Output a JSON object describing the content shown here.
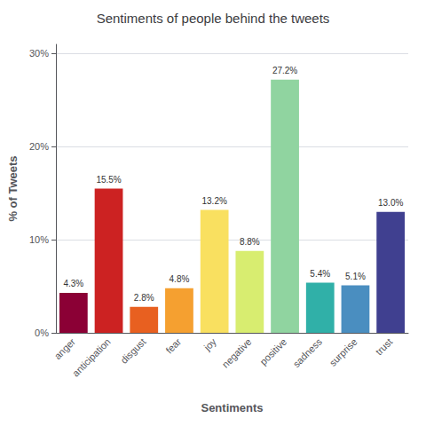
{
  "chart_data": {
    "type": "bar",
    "title": "Sentiments of people behind the tweets",
    "xlabel": "Sentiments",
    "ylabel": "% of Tweets",
    "categories": [
      "anger",
      "anticipation",
      "disgust",
      "fear",
      "joy",
      "negative",
      "positive",
      "sadness",
      "surprise",
      "trust"
    ],
    "values": [
      4.3,
      15.5,
      2.8,
      4.8,
      13.2,
      8.8,
      27.2,
      5.4,
      5.1,
      13.0
    ],
    "value_labels": [
      "4.3%",
      "15.5%",
      "2.8%",
      "4.8%",
      "13.2%",
      "8.8%",
      "27.2%",
      "5.4%",
      "5.1%",
      "13.0%"
    ],
    "colors": [
      "#8b0035",
      "#cc2222",
      "#e86020",
      "#f5a030",
      "#f9e060",
      "#d8ed70",
      "#90d4a0",
      "#30b0a8",
      "#4a8ec0",
      "#404090"
    ],
    "ylim": [
      0,
      31
    ],
    "yticks": [
      {
        "value": 0,
        "label": "0%"
      },
      {
        "value": 10,
        "label": "10%"
      },
      {
        "value": 20,
        "label": "20%"
      },
      {
        "value": 30,
        "label": "30%"
      }
    ],
    "grid": true,
    "data_labels": true
  }
}
